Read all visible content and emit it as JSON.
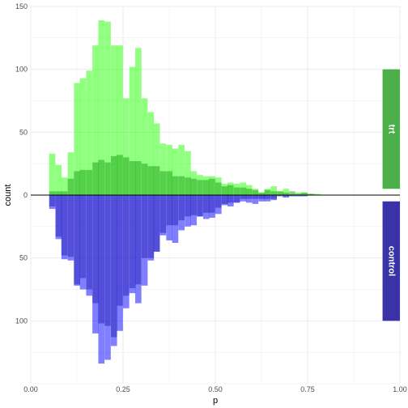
{
  "chart_data": {
    "type": "bar",
    "xlabel": "p",
    "ylabel": "count",
    "xlim": [
      0,
      1
    ],
    "ylim": [
      -150,
      150
    ],
    "grid": true,
    "x_ticks": [
      0.0,
      0.25,
      0.5,
      0.75,
      1.0
    ],
    "x_tick_labels": [
      "0.00",
      "0.25",
      "0.50",
      "0.75",
      "1.00"
    ],
    "y_ticks": [
      -100,
      -50,
      0,
      50,
      100,
      150
    ],
    "y_tick_labels": [
      "100",
      "50",
      "0",
      "50",
      "100",
      "150"
    ],
    "bin_width": 0.0167,
    "bin_starts": [
      0.05,
      0.067,
      0.083,
      0.1,
      0.117,
      0.133,
      0.15,
      0.167,
      0.183,
      0.2,
      0.217,
      0.233,
      0.25,
      0.267,
      0.283,
      0.3,
      0.317,
      0.333,
      0.35,
      0.367,
      0.383,
      0.4,
      0.417,
      0.433,
      0.45,
      0.467,
      0.483,
      0.5,
      0.517,
      0.533,
      0.55,
      0.567,
      0.583,
      0.6,
      0.617,
      0.633,
      0.65,
      0.667,
      0.683,
      0.7,
      0.717,
      0.733,
      0.75,
      0.767
    ],
    "series": [
      {
        "name": "trt",
        "color": "#23ff00",
        "direction": "up",
        "values": [
          33,
          24,
          14,
          34,
          89,
          93,
          99,
          119,
          139,
          138,
          119,
          119,
          77,
          102,
          117,
          77,
          66,
          57,
          41,
          40,
          37,
          40,
          35,
          19,
          16,
          15,
          15,
          14,
          9,
          10,
          9,
          10,
          8,
          5,
          2,
          5,
          7,
          3,
          5,
          1,
          2,
          2,
          1,
          1
        ]
      },
      {
        "name": "trt-control-overlap",
        "color": "#18a414",
        "direction": "up",
        "values": [
          3,
          3,
          3,
          13,
          19,
          20,
          20,
          26,
          28,
          26,
          31,
          32,
          30,
          27,
          27,
          25,
          23,
          23,
          19,
          19,
          15,
          15,
          14,
          13,
          12,
          12,
          13,
          10,
          7,
          8,
          6,
          6,
          5,
          4,
          2,
          4,
          3,
          3,
          2,
          3,
          1,
          2,
          1,
          0
        ]
      },
      {
        "name": "control",
        "color": "#0000ff",
        "direction": "down",
        "values": [
          11,
          35,
          51,
          52,
          72,
          75,
          80,
          110,
          134,
          131,
          120,
          108,
          90,
          78,
          86,
          72,
          52,
          45,
          32,
          36,
          38,
          28,
          25,
          24,
          17,
          19,
          18,
          15,
          8,
          9,
          6,
          5,
          6,
          7,
          5,
          5,
          4,
          1,
          2,
          1,
          1,
          1,
          0,
          0
        ]
      },
      {
        "name": "control-overlap",
        "color": "#2720b8",
        "direction": "down",
        "values": [
          9,
          33,
          48,
          49,
          71,
          66,
          75,
          86,
          102,
          104,
          113,
          88,
          80,
          74,
          71,
          50,
          50,
          45,
          30,
          24,
          24,
          20,
          17,
          16,
          17,
          14,
          14,
          10,
          7,
          6,
          6,
          3,
          3,
          3,
          3,
          3,
          3,
          0,
          1,
          0,
          0,
          0,
          0,
          0
        ]
      }
    ],
    "legend_labels": [
      {
        "text": "trt",
        "color": "#4daf4a",
        "y_top": 100,
        "y_bottom": 5
      },
      {
        "text": "control",
        "color": "#3a33a8",
        "y_top": -5,
        "y_bottom": -100
      }
    ],
    "label_x_range": [
      0.953,
      1.0
    ]
  }
}
